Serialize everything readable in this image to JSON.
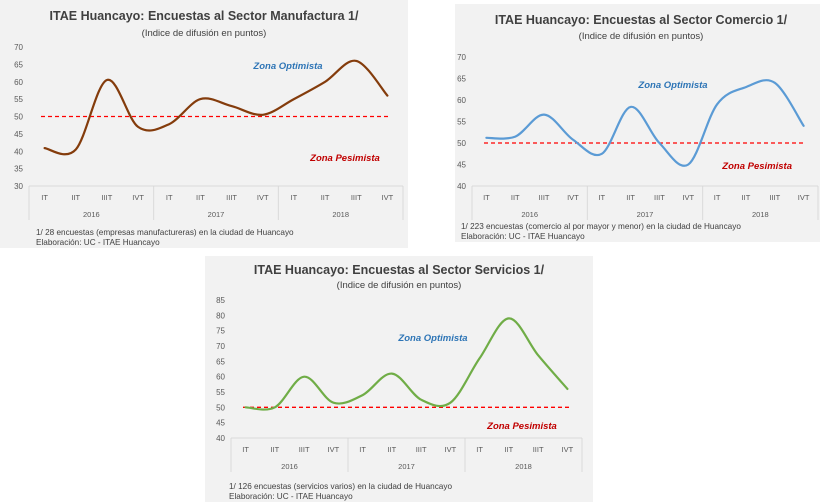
{
  "chart_data": [
    {
      "type": "line",
      "title": "ITAE Huancayo: Encuestas al Sector Manufactura 1/",
      "subtitle": "(Indice de difusión en puntos)",
      "quarters": [
        "IT",
        "IIT",
        "IIIT",
        "IVT",
        "IT",
        "IIT",
        "IIIT",
        "IVT",
        "IT",
        "IIT",
        "IIIT",
        "IVT"
      ],
      "years": [
        "2016",
        "2017",
        "2018"
      ],
      "ylim": [
        30,
        70
      ],
      "yticks": [
        "30",
        "35",
        "40",
        "45",
        "50",
        "55",
        "60",
        "65",
        "70"
      ],
      "series": [
        {
          "values": [
            40.9,
            40.5,
            60.5,
            47.0,
            47.8,
            55.0,
            53.0,
            50.5,
            55.0,
            60.0,
            66.0,
            56.0
          ],
          "color": "#843c0c"
        }
      ],
      "threshold": 50,
      "annotations": {
        "optimista": "Zona Optimista",
        "pesimista": "Zona Pesimista"
      },
      "footnotes": [
        "1/ 28 encuestas (empresas manufactureras) en la ciudad de Huancayo",
        "Elaboración: UC - ITAE Huancayo"
      ]
    },
    {
      "type": "line",
      "title": "ITAE Huancayo: Encuestas al Sector Comercio 1/",
      "subtitle": "(Indice de difusión en puntos)",
      "quarters": [
        "IT",
        "IIT",
        "IIIT",
        "IVT",
        "IT",
        "IIT",
        "IIIT",
        "IVT",
        "IT",
        "IIT",
        "IIIT",
        "IVT"
      ],
      "years": [
        "2016",
        "2017",
        "2018"
      ],
      "ylim": [
        40,
        70
      ],
      "yticks": [
        "40",
        "45",
        "50",
        "55",
        "60",
        "65",
        "70"
      ],
      "series": [
        {
          "values": [
            51.2,
            51.5,
            56.6,
            50.8,
            47.5,
            58.4,
            50.0,
            45.0,
            59.0,
            63.0,
            64.0,
            54.0
          ],
          "color": "#5b9bd5"
        }
      ],
      "threshold": 50,
      "annotations": {
        "optimista": "Zona Optimista",
        "pesimista": "Zona Pesimista"
      },
      "footnotes": [
        "1/ 223 encuestas (comercio al por mayor y menor) en la ciudad de Huancayo",
        "Elaboración: UC - ITAE Huancayo"
      ]
    },
    {
      "type": "line",
      "title": "ITAE Huancayo: Encuestas al Sector Servicios 1/",
      "subtitle": "(Indice de difusión en puntos)",
      "quarters": [
        "IT",
        "IIT",
        "IIIT",
        "IVT",
        "IT",
        "IIT",
        "IIIT",
        "IVT",
        "IT",
        "IIT",
        "IIIT",
        "IVT"
      ],
      "years": [
        "2016",
        "2017",
        "2018"
      ],
      "ylim": [
        40,
        85
      ],
      "yticks": [
        "40",
        "45",
        "50",
        "55",
        "60",
        "65",
        "70",
        "75",
        "80",
        "85"
      ],
      "series": [
        {
          "values": [
            50.0,
            50.0,
            60.0,
            51.5,
            54.0,
            61.0,
            52.5,
            51.5,
            66.0,
            79.0,
            67.0,
            56.0
          ],
          "color": "#70ad47"
        }
      ],
      "threshold": 50,
      "annotations": {
        "optimista": "Zona Optimista",
        "pesimista": "Zona Pesimista"
      },
      "footnotes": [
        "1/ 126 encuestas (servicios varios) en la ciudad de Huancayo",
        "Elaboración: UC - ITAE Huancayo"
      ]
    }
  ]
}
